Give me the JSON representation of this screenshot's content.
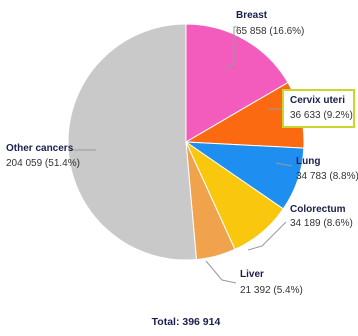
{
  "chart_data": {
    "type": "pie",
    "start_angle_deg": 0,
    "direction": "clockwise",
    "slices": [
      {
        "name": "Breast",
        "value_label": "65 858 (16.6%)",
        "value": 65858,
        "percent": 16.6,
        "color": "#f35bbd",
        "highlight": false
      },
      {
        "name": "Cervix uteri",
        "value_label": "36 633 (9.2%)",
        "value": 36633,
        "percent": 9.2,
        "color": "#fb6a10",
        "highlight": true
      },
      {
        "name": "Lung",
        "value_label": "34 783 (8.8%)",
        "value": 34783,
        "percent": 8.8,
        "color": "#1f8ef1",
        "highlight": false
      },
      {
        "name": "Colorectum",
        "value_label": "34 189 (8.6%)",
        "value": 34189,
        "percent": 8.6,
        "color": "#f9c80e",
        "highlight": false
      },
      {
        "name": "Liver",
        "value_label": "21 392 (5.4%)",
        "value": 21392,
        "percent": 5.4,
        "color": "#f0a24d",
        "highlight": false
      },
      {
        "name": "Other cancers",
        "value_label": "204 059 (51.4%)",
        "value": 204059,
        "percent": 51.4,
        "color": "#c9c9c9",
        "highlight": false
      }
    ],
    "highlight_color": "#c8d82b",
    "total_label": "Total: 396 914"
  }
}
